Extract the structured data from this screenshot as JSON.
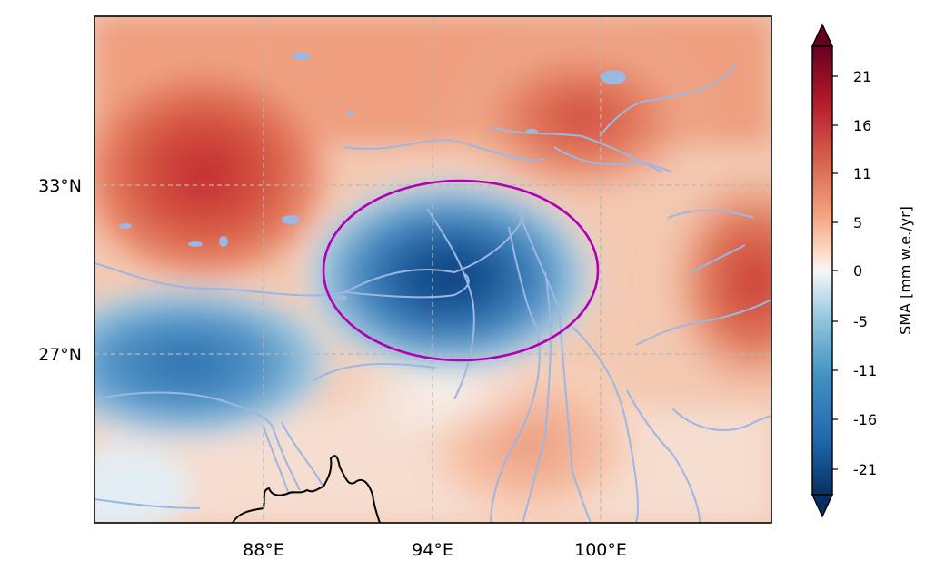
{
  "map": {
    "longitude_labels": [
      "88°E",
      "94°E",
      "100°E"
    ],
    "latitude_labels": [
      "33°N",
      "27°N"
    ],
    "gridlines": true,
    "highlight_ellipse_color": "#b000b5",
    "river_color": "#9bb7e2",
    "coastline_color": "#000000"
  },
  "colorbar": {
    "label": "SMA [mm w.e./yr]",
    "ticks": [
      "21",
      "16",
      "11",
      "5",
      "0",
      "-5",
      "-11",
      "-16",
      "-21"
    ],
    "colormap": "RdBu_r",
    "extend": "both"
  },
  "chart_data": {
    "type": "heatmap",
    "variable": "SMA",
    "units": "mm w.e./yr",
    "lon_ticks": [
      88,
      94,
      100
    ],
    "lat_ticks": [
      33,
      27
    ],
    "color_range": [
      -24,
      24
    ],
    "features": [
      {
        "lon": 84,
        "lat": 33,
        "value": 18
      },
      {
        "lon": 98,
        "lat": 35,
        "value": 13
      },
      {
        "lon": 105,
        "lat": 30,
        "value": 15
      },
      {
        "lon": 95,
        "lat": 30,
        "value": -23
      },
      {
        "lon": 86,
        "lat": 27.5,
        "value": -14
      },
      {
        "lon": 99,
        "lat": 24,
        "value": 7
      }
    ]
  }
}
